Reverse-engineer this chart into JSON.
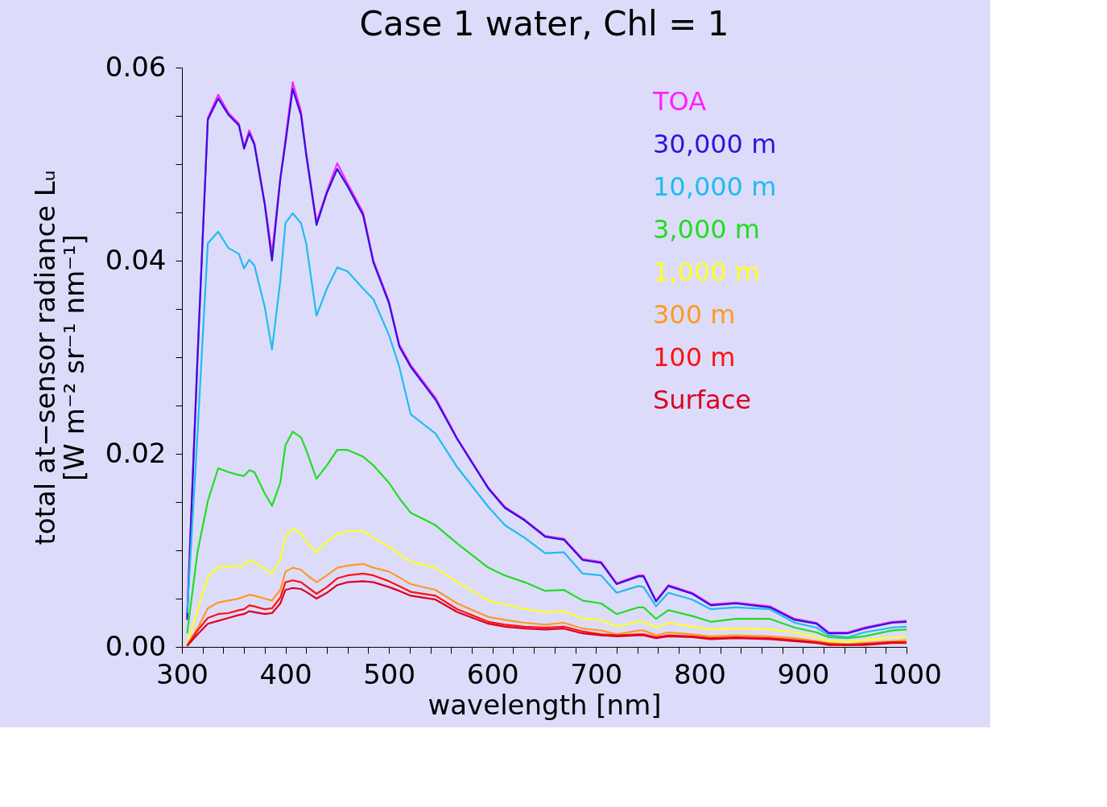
{
  "chart_data": {
    "type": "line",
    "title": "Case 1 water, Chl = 1",
    "xlabel": "wavelength [nm]",
    "ylabel": "total at−sensor radiance Lᵤ\n[W m⁻² sr⁻¹ nm⁻¹]",
    "x": [
      305,
      315,
      325,
      335,
      345,
      355,
      360,
      365,
      370,
      380,
      387,
      395,
      400,
      407,
      415,
      420,
      430,
      440,
      450,
      460,
      475,
      485,
      500,
      510,
      521,
      545,
      566,
      596,
      612,
      631,
      651,
      669,
      687,
      705,
      720,
      741,
      746,
      758,
      770,
      793,
      811,
      835,
      868,
      892,
      913,
      925,
      943,
      959,
      986,
      1000
    ],
    "xlim": [
      300,
      1000
    ],
    "ylim": [
      0,
      0.06
    ],
    "xticks": [
      300,
      {
        "value": 320,
        "label": null
      },
      {
        "value": 340,
        "label": null
      },
      {
        "value": 360,
        "label": null
      },
      {
        "value": 380,
        "label": null
      },
      400,
      {
        "value": 420,
        "label": null
      },
      {
        "value": 440,
        "label": null
      },
      {
        "value": 460,
        "label": null
      },
      {
        "value": 480,
        "label": null
      },
      500,
      {
        "value": 520,
        "label": null
      },
      {
        "value": 540,
        "label": null
      },
      {
        "value": 560,
        "label": null
      },
      {
        "value": 580,
        "label": null
      },
      600,
      {
        "value": 620,
        "label": null
      },
      {
        "value": 640,
        "label": null
      },
      {
        "value": 660,
        "label": null
      },
      {
        "value": 680,
        "label": null
      },
      700,
      {
        "value": 720,
        "label": null
      },
      {
        "value": 740,
        "label": null
      },
      {
        "value": 760,
        "label": null
      },
      {
        "value": 780,
        "label": null
      },
      800,
      {
        "value": 820,
        "label": null
      },
      {
        "value": 840,
        "label": null
      },
      {
        "value": 860,
        "label": null
      },
      {
        "value": 880,
        "label": null
      },
      900,
      {
        "value": 920,
        "label": null
      },
      {
        "value": 940,
        "label": null
      },
      {
        "value": 960,
        "label": null
      },
      {
        "value": 980,
        "label": null
      },
      1000
    ],
    "yticks": [
      {
        "value": 0,
        "label": "0.00"
      },
      {
        "value": 0.005,
        "label": null
      },
      {
        "value": 0.01,
        "label": null
      },
      {
        "value": 0.015,
        "label": null
      },
      0.02,
      {
        "value": 0.025,
        "label": null
      },
      {
        "value": 0.03,
        "label": null
      },
      {
        "value": 0.035,
        "label": null
      },
      0.04,
      {
        "value": 0.045,
        "label": null
      },
      {
        "value": 0.05,
        "label": null
      },
      {
        "value": 0.055,
        "label": null
      },
      0.06
    ],
    "grid": false,
    "legend": "top right",
    "line_style": "solid",
    "marker": "none",
    "series": [
      {
        "name": "TOA",
        "color": "#ff22ff",
        "values": [
          0.0034,
          0.03,
          0.0548,
          0.0572,
          0.0553,
          0.0542,
          0.0518,
          0.0535,
          0.0522,
          0.046,
          0.0407,
          0.0486,
          0.0526,
          0.0585,
          0.0555,
          0.0512,
          0.044,
          0.0472,
          0.0501,
          0.048,
          0.045,
          0.04,
          0.0358,
          0.0313,
          0.0292,
          0.0258,
          0.0216,
          0.0165,
          0.0145,
          0.0132,
          0.0115,
          0.0112,
          0.0091,
          0.0088,
          0.0066,
          0.0074,
          0.0074,
          0.0048,
          0.0064,
          0.0056,
          0.0044,
          0.0046,
          0.0042,
          0.0029,
          0.0025,
          0.0015,
          0.0015,
          0.002,
          0.0026,
          0.0027
        ]
      },
      {
        "name": "30,000 m",
        "color": "#3311dd",
        "values": [
          0.0028,
          0.0298,
          0.0546,
          0.0568,
          0.0551,
          0.054,
          0.0516,
          0.0532,
          0.052,
          0.0458,
          0.04,
          0.0484,
          0.0522,
          0.0578,
          0.0551,
          0.051,
          0.0437,
          0.047,
          0.0495,
          0.0477,
          0.0447,
          0.0398,
          0.0356,
          0.0311,
          0.029,
          0.0256,
          0.0215,
          0.0164,
          0.0144,
          0.0131,
          0.0114,
          0.0111,
          0.009,
          0.0087,
          0.0065,
          0.0073,
          0.0073,
          0.0047,
          0.0063,
          0.0055,
          0.0043,
          0.0045,
          0.0041,
          0.0028,
          0.0024,
          0.0014,
          0.0014,
          0.0019,
          0.0025,
          0.0026
        ]
      },
      {
        "name": "10,000 m",
        "color": "#22bbee",
        "values": [
          0.0035,
          0.022,
          0.0418,
          0.043,
          0.0413,
          0.0407,
          0.0392,
          0.0401,
          0.0395,
          0.0352,
          0.0308,
          0.0379,
          0.0439,
          0.0449,
          0.0439,
          0.0418,
          0.0343,
          0.0371,
          0.0393,
          0.0389,
          0.0371,
          0.036,
          0.0323,
          0.029,
          0.0241,
          0.0221,
          0.0186,
          0.0145,
          0.0126,
          0.0113,
          0.0097,
          0.0098,
          0.0076,
          0.0074,
          0.0056,
          0.0063,
          0.0062,
          0.0042,
          0.0056,
          0.0049,
          0.0039,
          0.0041,
          0.0039,
          0.0025,
          0.002,
          0.0012,
          0.001,
          0.0015,
          0.002,
          0.0021
        ]
      },
      {
        "name": "3,000 m",
        "color": "#22dd22",
        "values": [
          0.0014,
          0.0098,
          0.0151,
          0.0185,
          0.0181,
          0.0178,
          0.0177,
          0.0183,
          0.0181,
          0.0159,
          0.0146,
          0.017,
          0.0209,
          0.0223,
          0.0217,
          0.0204,
          0.0174,
          0.0188,
          0.0204,
          0.0204,
          0.0197,
          0.0188,
          0.017,
          0.0154,
          0.0139,
          0.0126,
          0.0107,
          0.0082,
          0.0074,
          0.0067,
          0.0058,
          0.0059,
          0.0048,
          0.0045,
          0.0034,
          0.0041,
          0.0041,
          0.0029,
          0.0038,
          0.0032,
          0.0026,
          0.0029,
          0.0029,
          0.002,
          0.0015,
          0.001,
          0.0009,
          0.0011,
          0.0017,
          0.0018
        ]
      },
      {
        "name": "1,000 m",
        "color": "#ffff22",
        "values": [
          0.0003,
          0.0038,
          0.0072,
          0.0083,
          0.0083,
          0.0084,
          0.0084,
          0.009,
          0.0088,
          0.008,
          0.0076,
          0.009,
          0.0114,
          0.0122,
          0.0118,
          0.0109,
          0.0098,
          0.0109,
          0.0117,
          0.012,
          0.012,
          0.0113,
          0.0104,
          0.0096,
          0.0088,
          0.0082,
          0.0067,
          0.0048,
          0.0044,
          0.0039,
          0.0036,
          0.0037,
          0.0029,
          0.0028,
          0.0021,
          0.0026,
          0.0026,
          0.002,
          0.0025,
          0.0021,
          0.0018,
          0.0019,
          0.0018,
          0.0015,
          0.001,
          0.0006,
          0.0005,
          0.0007,
          0.001,
          0.0011
        ]
      },
      {
        "name": "300 m",
        "color": "#ff9922",
        "values": [
          0.0002,
          0.0019,
          0.004,
          0.0046,
          0.0048,
          0.005,
          0.0052,
          0.0054,
          0.0053,
          0.005,
          0.0048,
          0.0059,
          0.0078,
          0.0082,
          0.008,
          0.0075,
          0.0067,
          0.0074,
          0.0082,
          0.0084,
          0.0086,
          0.0082,
          0.0078,
          0.0072,
          0.0065,
          0.0059,
          0.0045,
          0.0031,
          0.0028,
          0.0025,
          0.0023,
          0.0025,
          0.0019,
          0.0017,
          0.0013,
          0.0017,
          0.0017,
          0.0012,
          0.0015,
          0.0013,
          0.0011,
          0.0012,
          0.0011,
          0.0009,
          0.0006,
          0.0004,
          0.0003,
          0.0004,
          0.0006,
          0.0007
        ]
      },
      {
        "name": "100 m",
        "color": "#ff1111",
        "values": [
          0.0001,
          0.0017,
          0.003,
          0.0034,
          0.0035,
          0.0038,
          0.0039,
          0.0043,
          0.0042,
          0.0039,
          0.004,
          0.0051,
          0.0067,
          0.0069,
          0.0067,
          0.0063,
          0.0055,
          0.0062,
          0.0071,
          0.0074,
          0.0076,
          0.0074,
          0.0068,
          0.0063,
          0.0057,
          0.0053,
          0.0039,
          0.0026,
          0.0023,
          0.0021,
          0.002,
          0.0021,
          0.0016,
          0.0013,
          0.0012,
          0.0013,
          0.0013,
          0.001,
          0.0012,
          0.0011,
          0.0009,
          0.001,
          0.0009,
          0.0007,
          0.0005,
          0.0003,
          0.0002,
          0.0003,
          0.0005,
          0.0005
        ]
      },
      {
        "name": "Surface",
        "color": "#dd0022",
        "values": [
          0.0001,
          0.0013,
          0.0024,
          0.0027,
          0.003,
          0.0033,
          0.0034,
          0.0037,
          0.0036,
          0.0034,
          0.0035,
          0.0045,
          0.0059,
          0.0061,
          0.006,
          0.0057,
          0.005,
          0.0056,
          0.0064,
          0.0067,
          0.0068,
          0.0067,
          0.0062,
          0.0058,
          0.0053,
          0.0049,
          0.0036,
          0.0024,
          0.0021,
          0.0019,
          0.0018,
          0.0019,
          0.0014,
          0.0012,
          0.0011,
          0.0012,
          0.0012,
          0.0009,
          0.0011,
          0.001,
          0.0008,
          0.0009,
          0.0008,
          0.0006,
          0.0004,
          0.0002,
          0.0002,
          0.0002,
          0.0004,
          0.0004
        ]
      }
    ]
  }
}
